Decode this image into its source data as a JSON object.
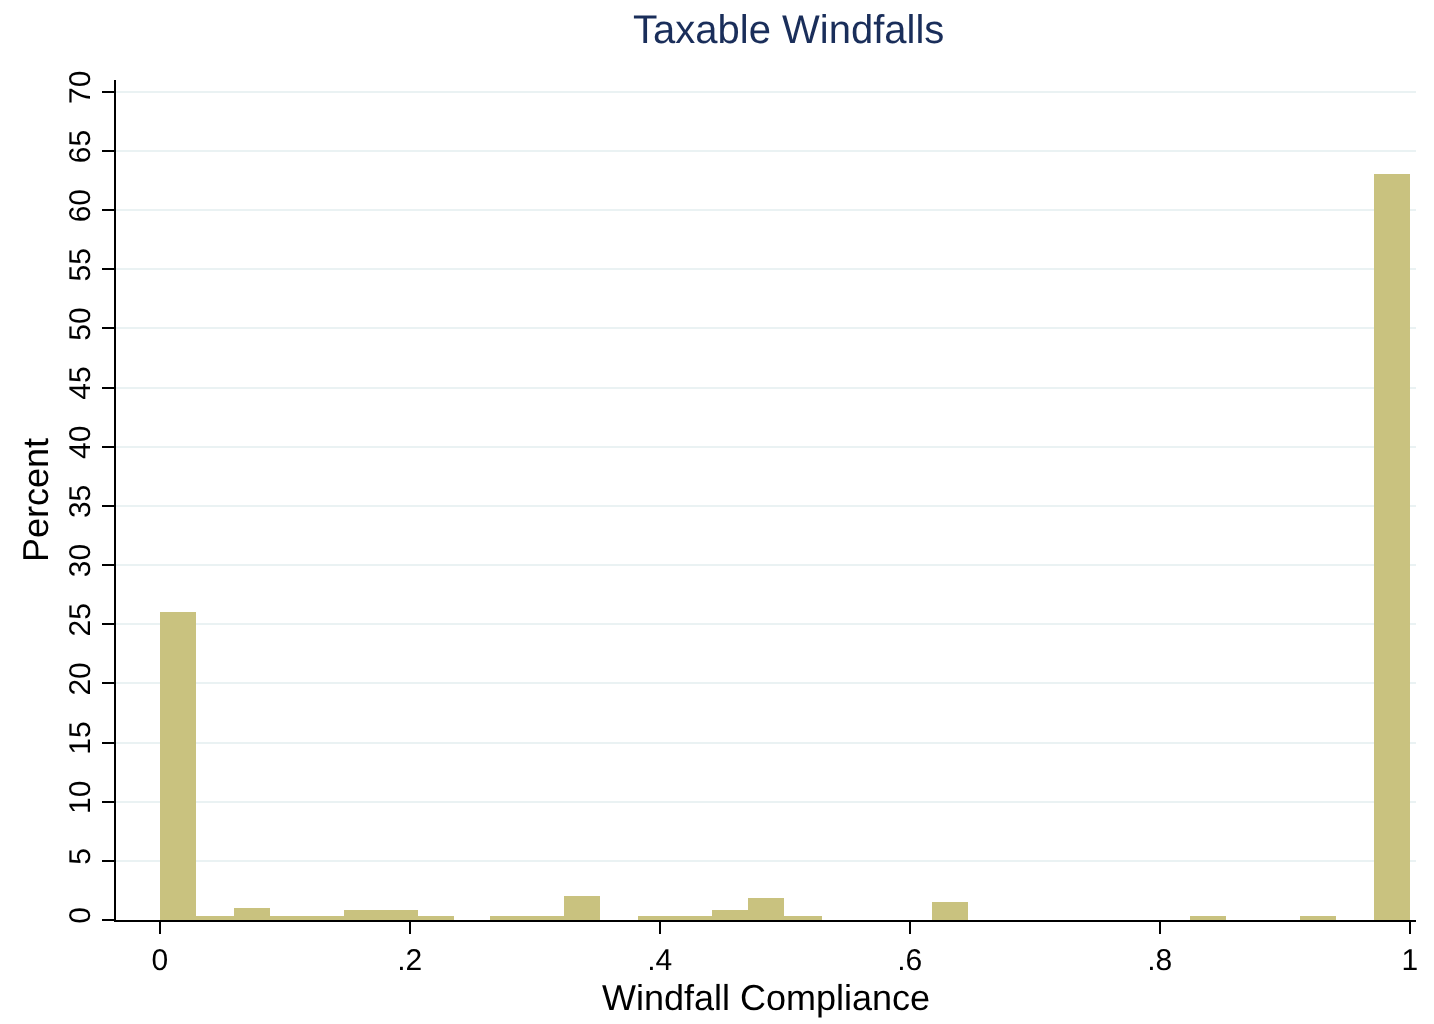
{
  "chart_data": {
    "type": "histogram",
    "title": "Taxable Windfalls",
    "xlabel": "Windfall Compliance",
    "ylabel": "Percent",
    "bins": [
      0,
      0.0294,
      0.0588,
      0.0882,
      0.1176,
      0.1471,
      0.1765,
      0.2059,
      0.2353,
      0.2647,
      0.2941,
      0.3235,
      0.3529,
      0.3824,
      0.4118,
      0.4412,
      0.4706,
      0.5,
      0.5294,
      0.5588,
      0.5882,
      0.6176,
      0.6471,
      0.6765,
      0.7059,
      0.7353,
      0.7647,
      0.7941,
      0.8235,
      0.8529,
      0.8824,
      0.9118,
      0.9412,
      0.9706,
      1
    ],
    "values": [
      26.0,
      0.2,
      1.0,
      0.2,
      0.4,
      0.8,
      0.8,
      0.2,
      0,
      0.4,
      0.2,
      2.1,
      0,
      0.4,
      0.2,
      0.8,
      1.8,
      0.2,
      0,
      0,
      0,
      1.5,
      0,
      0,
      0,
      0,
      0,
      0,
      0.2,
      0,
      0,
      0.2,
      0,
      63.0
    ],
    "color": "#c9c27f",
    "xlim": [
      -0.035,
      1.005
    ],
    "ylim": [
      0,
      71
    ],
    "xticks": [
      0,
      {
        "value": 0.2,
        "label": ".2"
      },
      {
        "value": 0.4,
        "label": ".4"
      },
      {
        "value": 0.6,
        "label": ".6"
      },
      {
        "value": 0.8,
        "label": ".8"
      },
      1
    ],
    "yticks": [
      0,
      5,
      10,
      15,
      20,
      25,
      30,
      35,
      40,
      45,
      50,
      55,
      60,
      65,
      70
    ],
    "grid": "y"
  }
}
